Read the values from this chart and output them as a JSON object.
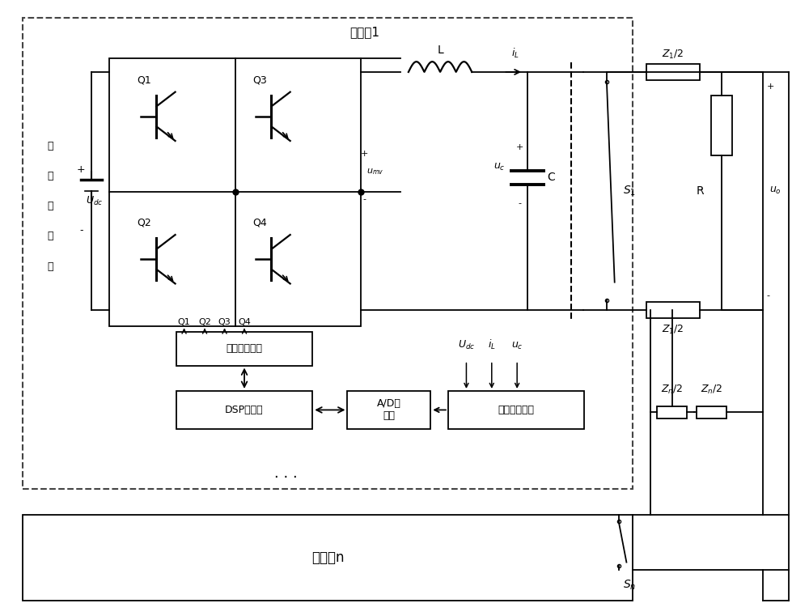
{
  "bg_color": "#ffffff",
  "line_color": "#000000",
  "text_color": "#000000",
  "fig_width": 10.0,
  "fig_height": 7.61,
  "title_inv1": "逆变利1",
  "title_invn": "逆变屎n",
  "dc_label_lines": [
    "直",
    "流",
    "稳",
    "压",
    "源"
  ],
  "q_labels": [
    "Q1",
    "Q2",
    "Q3",
    "Q4"
  ],
  "drive_label": "驱动保护电路",
  "dsp_label": "DSP控制器",
  "ad_label": "A/D转\n换器",
  "signal_label": "信号调理电路",
  "L_label": "L",
  "C_label": "C",
  "R_label": "R",
  "S1_label": "S₁",
  "Sn_label": "Sₙ",
  "Z1_label": "Z₁/2",
  "Zn_label1": "Zₙ/2",
  "Zn_label2": "Zₙ/2"
}
